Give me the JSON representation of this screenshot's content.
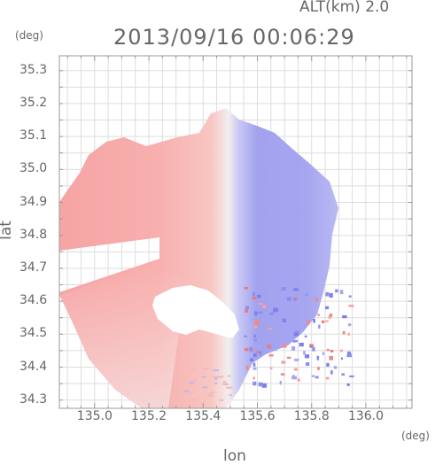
{
  "header": {
    "altitude": "ALT(km) 2.0",
    "datetime": "2013/09/16 00:06:29"
  },
  "chart_data": {
    "type": "heatmap",
    "title": "2013/09/16 00:06:29",
    "annotation": "ALT(km) 2.0",
    "xlabel": "lon",
    "ylabel": "lat",
    "x_unit": "(deg)",
    "y_unit": "(deg)",
    "xlim": [
      134.87,
      136.17
    ],
    "ylim": [
      34.275,
      35.345
    ],
    "x_ticks": [
      "135.0",
      "135.2",
      "135.4",
      "135.6",
      "135.8",
      "136.0"
    ],
    "y_ticks": [
      "34.3",
      "34.4",
      "34.5",
      "34.6",
      "34.7",
      "34.8",
      "34.9",
      "35.0",
      "35.1",
      "35.2",
      "35.3"
    ],
    "grid": true,
    "radar_center": [
      135.52,
      34.82
    ],
    "colors": {
      "positive": "#f4a3a3",
      "negative": "#9f9ff2",
      "neutral": "#f2f2fb",
      "grid": "#dddddd",
      "frame": "#999999"
    }
  }
}
